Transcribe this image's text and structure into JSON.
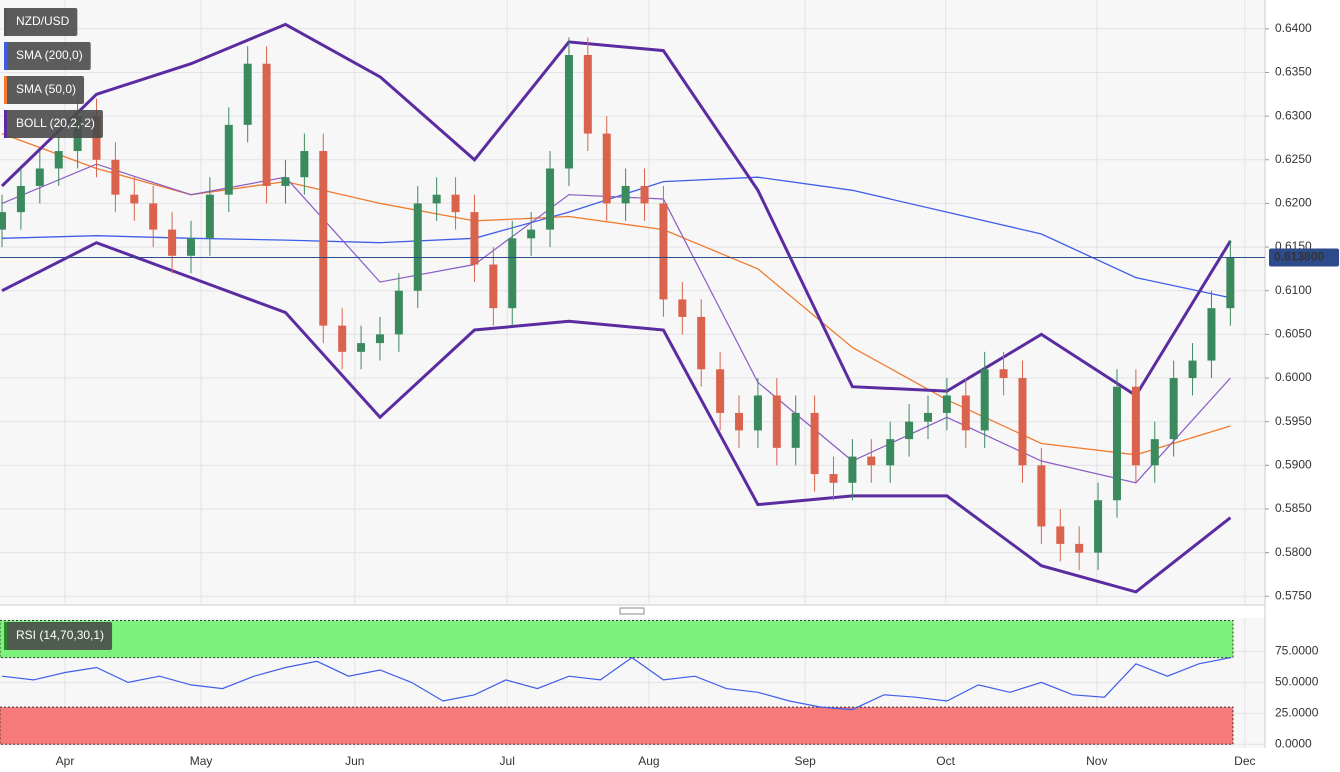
{
  "chart_data": {
    "type": "candlestick",
    "title": "NZD/USD",
    "up_color": "#3a8a5e",
    "down_color": "#d9634c",
    "x": [
      0,
      3,
      6,
      9,
      12,
      15,
      18,
      21,
      24,
      27,
      30,
      33,
      36,
      39,
      42,
      45,
      48,
      51,
      54,
      57,
      60,
      63,
      66,
      69,
      72,
      75,
      78,
      81,
      84,
      87,
      90,
      93,
      96,
      99,
      102,
      105,
      108,
      111,
      114,
      117,
      120,
      123,
      126,
      129,
      132,
      135,
      138,
      141,
      144,
      147,
      150,
      153,
      156,
      159,
      162,
      165,
      168,
      171,
      174,
      177,
      180,
      183,
      186,
      189,
      192,
      195
    ],
    "open": [
      0.617,
      0.619,
      0.622,
      0.624,
      0.626,
      0.63,
      0.625,
      0.621,
      0.62,
      0.617,
      0.614,
      0.616,
      0.621,
      0.629,
      0.636,
      0.622,
      0.623,
      0.626,
      0.606,
      0.603,
      0.604,
      0.605,
      0.61,
      0.62,
      0.621,
      0.619,
      0.613,
      0.608,
      0.616,
      0.617,
      0.624,
      0.637,
      0.628,
      0.62,
      0.622,
      0.62,
      0.609,
      0.607,
      0.601,
      0.596,
      0.594,
      0.598,
      0.592,
      0.596,
      0.589,
      0.588,
      0.591,
      0.59,
      0.593,
      0.595,
      0.596,
      0.598,
      0.594,
      0.601,
      0.6,
      0.59,
      0.583,
      0.581,
      0.58,
      0.586,
      0.599,
      0.59,
      0.593,
      0.6,
      0.602,
      0.608
    ],
    "high": [
      0.621,
      0.624,
      0.626,
      0.628,
      0.632,
      0.632,
      0.627,
      0.623,
      0.622,
      0.619,
      0.618,
      0.623,
      0.631,
      0.638,
      0.638,
      0.625,
      0.628,
      0.628,
      0.608,
      0.606,
      0.607,
      0.612,
      0.622,
      0.623,
      0.623,
      0.621,
      0.615,
      0.618,
      0.619,
      0.626,
      0.639,
      0.639,
      0.63,
      0.624,
      0.624,
      0.622,
      0.611,
      0.609,
      0.603,
      0.598,
      0.6,
      0.6,
      0.598,
      0.598,
      0.591,
      0.593,
      0.593,
      0.595,
      0.597,
      0.598,
      0.6,
      0.6,
      0.603,
      0.603,
      0.602,
      0.592,
      0.585,
      0.583,
      0.588,
      0.601,
      0.601,
      0.595,
      0.602,
      0.604,
      0.61,
      0.6158
    ],
    "low": [
      0.615,
      0.617,
      0.62,
      0.622,
      0.624,
      0.623,
      0.619,
      0.618,
      0.615,
      0.612,
      0.612,
      0.614,
      0.619,
      0.627,
      0.62,
      0.62,
      0.621,
      0.604,
      0.601,
      0.601,
      0.602,
      0.603,
      0.608,
      0.618,
      0.617,
      0.611,
      0.606,
      0.606,
      0.614,
      0.615,
      0.622,
      0.626,
      0.618,
      0.618,
      0.618,
      0.607,
      0.605,
      0.599,
      0.594,
      0.592,
      0.592,
      0.59,
      0.59,
      0.587,
      0.586,
      0.586,
      0.588,
      0.588,
      0.591,
      0.593,
      0.594,
      0.592,
      0.592,
      0.598,
      0.588,
      0.581,
      0.579,
      0.578,
      0.578,
      0.584,
      0.588,
      0.588,
      0.591,
      0.598,
      0.6,
      0.606
    ],
    "close": [
      0.619,
      0.622,
      0.624,
      0.626,
      0.63,
      0.625,
      0.621,
      0.62,
      0.617,
      0.614,
      0.616,
      0.621,
      0.629,
      0.636,
      0.622,
      0.623,
      0.626,
      0.606,
      0.603,
      0.604,
      0.605,
      0.61,
      0.62,
      0.621,
      0.619,
      0.613,
      0.608,
      0.616,
      0.617,
      0.624,
      0.637,
      0.628,
      0.62,
      0.622,
      0.62,
      0.609,
      0.607,
      0.601,
      0.596,
      0.594,
      0.598,
      0.592,
      0.596,
      0.589,
      0.588,
      0.591,
      0.59,
      0.593,
      0.595,
      0.596,
      0.598,
      0.594,
      0.601,
      0.6,
      0.59,
      0.583,
      0.581,
      0.58,
      0.586,
      0.599,
      0.59,
      0.593,
      0.6,
      0.602,
      0.608,
      0.6138
    ],
    "xlim": [
      -0.32,
      200.5
    ],
    "xticks": [
      {
        "value": 10,
        "label": "Apr"
      },
      {
        "value": 31.6,
        "label": "May"
      },
      {
        "value": 56,
        "label": "Jun"
      },
      {
        "value": 80.2,
        "label": "Jul"
      },
      {
        "value": 102.7,
        "label": "Aug"
      },
      {
        "value": 127.5,
        "label": "Sep"
      },
      {
        "value": 149.8,
        "label": "Oct"
      },
      {
        "value": 173.8,
        "label": "Nov"
      },
      {
        "value": 197.3,
        "label": "Dec"
      }
    ],
    "ylim": [
      0.574,
      0.6433
    ],
    "yticks": [
      {
        "value": 0.64,
        "label": "0.6400"
      },
      {
        "value": 0.635,
        "label": "0.6350"
      },
      {
        "value": 0.63,
        "label": "0.6300"
      },
      {
        "value": 0.625,
        "label": "0.6250"
      },
      {
        "value": 0.62,
        "label": "0.6200"
      },
      {
        "value": 0.615,
        "label": "0.6150"
      },
      {
        "value": 0.61,
        "label": "0.6100"
      },
      {
        "value": 0.605,
        "label": "0.6050"
      },
      {
        "value": 0.6,
        "label": "0.6000"
      },
      {
        "value": 0.595,
        "label": "0.5950"
      },
      {
        "value": 0.59,
        "label": "0.5900"
      },
      {
        "value": 0.585,
        "label": "0.5850"
      },
      {
        "value": 0.58,
        "label": "0.5800"
      },
      {
        "value": 0.575,
        "label": "0.5750"
      }
    ],
    "grid": true,
    "last_price": {
      "value": 0.6138,
      "label": "0.613800"
    },
    "last_price_color": "#2d4a8a",
    "overlays": [
      {
        "name": "SMA (200,0)",
        "color": "#3f5ee8",
        "x": [
          0,
          15,
          30,
          45,
          60,
          75,
          90,
          105,
          120,
          135,
          150,
          165,
          180,
          195
        ],
        "values": [
          0.616,
          0.6163,
          0.616,
          0.6158,
          0.6155,
          0.616,
          0.619,
          0.6225,
          0.623,
          0.6215,
          0.619,
          0.6165,
          0.6115,
          0.6092
        ]
      },
      {
        "name": "SMA (50,0)",
        "color": "#f07a2e",
        "x": [
          0,
          15,
          30,
          45,
          60,
          75,
          90,
          105,
          120,
          135,
          150,
          165,
          180,
          195
        ],
        "values": [
          0.628,
          0.624,
          0.621,
          0.6225,
          0.62,
          0.618,
          0.6185,
          0.617,
          0.6125,
          0.6035,
          0.5975,
          0.5925,
          0.5912,
          0.5945
        ]
      }
    ],
    "bollinger": {
      "name": "BOLL (20,2,-2)",
      "color": "#5b2ca0",
      "x": [
        0,
        15,
        30,
        45,
        60,
        75,
        90,
        105,
        120,
        135,
        150,
        165,
        180,
        195
      ],
      "upper": [
        0.622,
        0.6325,
        0.636,
        0.6405,
        0.6345,
        0.625,
        0.6385,
        0.6375,
        0.6215,
        0.599,
        0.5985,
        0.605,
        0.598,
        0.6157
      ],
      "middle": [
        0.62,
        0.6245,
        0.621,
        0.623,
        0.611,
        0.613,
        0.621,
        0.6205,
        0.5995,
        0.5905,
        0.5955,
        0.5905,
        0.588,
        0.6
      ],
      "lower": [
        0.61,
        0.6155,
        0.6115,
        0.6075,
        0.5955,
        0.6055,
        0.6065,
        0.6055,
        0.5855,
        0.5865,
        0.5865,
        0.5785,
        0.5755,
        0.584
      ]
    },
    "rsi": {
      "name": "RSI (14,70,30,1)",
      "color": "#3f5ee8",
      "x": [
        0,
        5,
        10,
        15,
        20,
        25,
        30,
        35,
        40,
        45,
        50,
        55,
        60,
        65,
        70,
        75,
        80,
        85,
        90,
        95,
        100,
        105,
        110,
        115,
        120,
        125,
        130,
        135,
        140,
        145,
        150,
        155,
        160,
        165,
        170,
        175,
        180,
        185,
        190,
        195
      ],
      "values": [
        55,
        52,
        58,
        62,
        50,
        55,
        48,
        45,
        55,
        62,
        67,
        55,
        60,
        50,
        35,
        40,
        52,
        45,
        55,
        52,
        70,
        52,
        55,
        45,
        42,
        35,
        30,
        28,
        40,
        38,
        35,
        48,
        42,
        50,
        40,
        38,
        65,
        55,
        65,
        70
      ],
      "ylim": [
        -3,
        102
      ],
      "yticks": [
        {
          "value": 75,
          "label": "75.0000"
        },
        {
          "value": 50,
          "label": "50.0000"
        },
        {
          "value": 25,
          "label": "25.0000"
        },
        {
          "value": 0,
          "label": "0.0000"
        }
      ],
      "overbought": 70,
      "oversold": 30
    }
  }
}
